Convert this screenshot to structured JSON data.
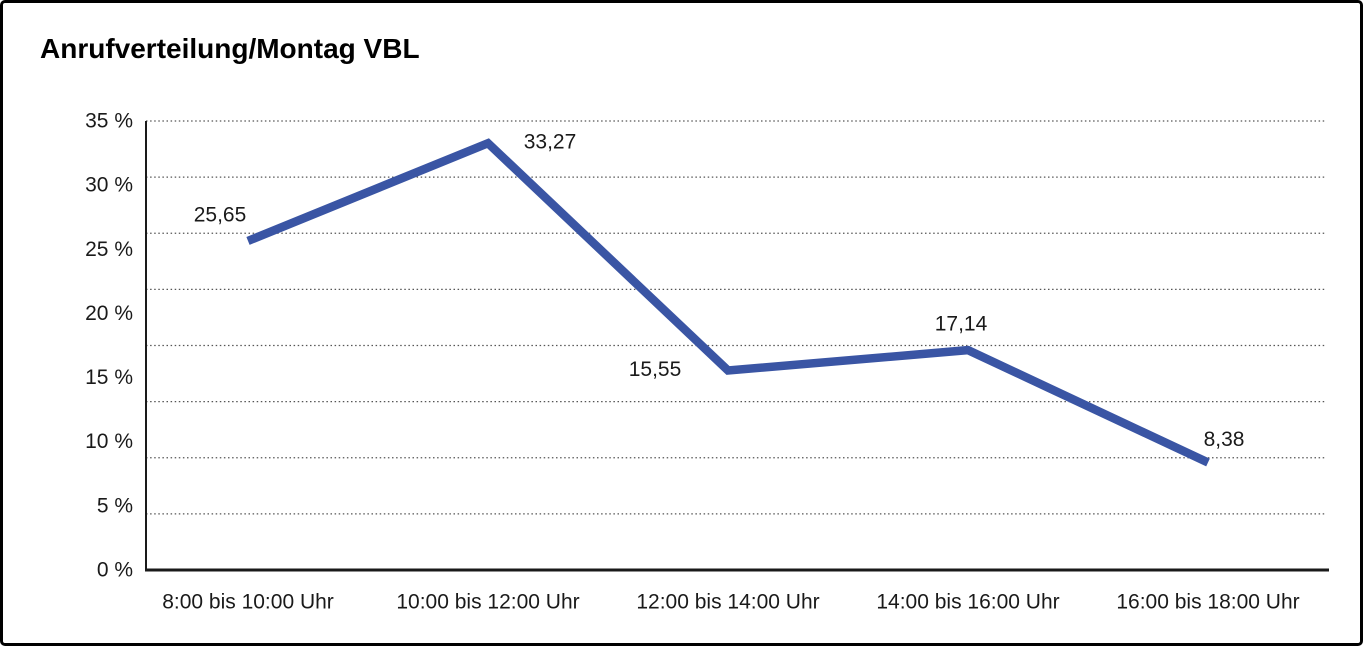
{
  "window": {
    "background_color": "#ffffff",
    "border_color": "#000000"
  },
  "chart_data": {
    "type": "line",
    "title": "Anrufverteilung/Montag VBL",
    "categories": [
      "8:00 bis 10:00 Uhr",
      "10:00 bis 12:00 Uhr",
      "12:00 bis 14:00 Uhr",
      "14:00 bis 16:00 Uhr",
      "16:00 bis 18:00 Uhr"
    ],
    "series": [
      {
        "name": "Anrufverteilung Montag VBL",
        "values": [
          25.65,
          33.27,
          15.55,
          17.14,
          8.38
        ],
        "value_labels": [
          "25,65",
          "33,27",
          "15,55",
          "17,14",
          "8,38"
        ]
      }
    ],
    "xlabel": "",
    "ylabel": "",
    "ylim": [
      0,
      35
    ],
    "y_tick_values": [
      35,
      30,
      25,
      20,
      15,
      10,
      5,
      0
    ],
    "y_tick_labels": [
      "35 %",
      "30 %",
      "25 %",
      "20 %",
      "15 %",
      "10 %",
      "5 %",
      "0 %"
    ],
    "gridline_divisions": 8,
    "gridline_style": "dotted",
    "legend_position": "none",
    "line_color": "#3A55A4",
    "axis_color": "#1a1a1a",
    "gridline_color": "#555555",
    "label_color": "#1a1a1a"
  }
}
